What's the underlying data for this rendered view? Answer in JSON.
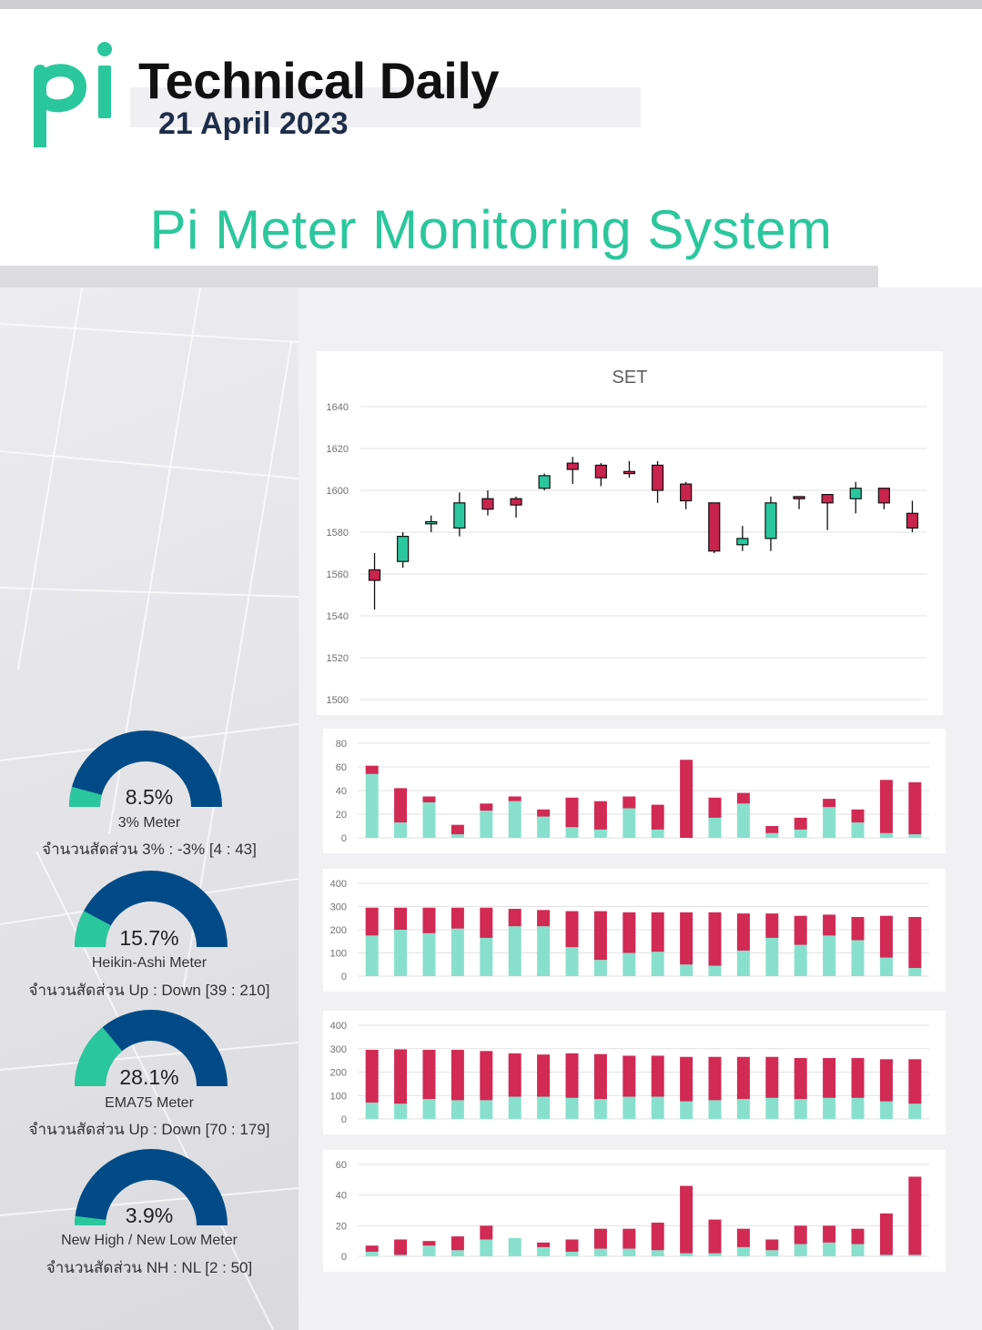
{
  "header": {
    "logo_text": "pi",
    "title": "Technical Daily",
    "date": "21 April 2023",
    "headline": "Pi Meter Monitoring System"
  },
  "colors": {
    "brand_green": "#2bc79c",
    "up_candle": "#2bc79c",
    "down_candle": "#c8244f",
    "bar_down": "#d02a55",
    "bar_up": "#88e0cc",
    "gauge_fill": "#004b87",
    "gauge_accent": "#2bc79c"
  },
  "gauges": [
    {
      "value": 8.5,
      "percent_label": "8.5%",
      "name": "3% Meter",
      "ratio": "จำนวนสัดส่วน 3% : -3% [4 : 43]"
    },
    {
      "value": 15.7,
      "percent_label": "15.7%",
      "name": "Heikin-Ashi Meter",
      "ratio": "จำนวนสัดส่วน Up : Down [39 : 210]"
    },
    {
      "value": 28.1,
      "percent_label": "28.1%",
      "name": "EMA75 Meter",
      "ratio": "จำนวนสัดส่วน Up : Down [70 : 179]"
    },
    {
      "value": 3.9,
      "percent_label": "3.9%",
      "name": "New High / New Low Meter",
      "ratio": "จำนวนสัดส่วน NH : NL [2 : 50]"
    }
  ],
  "chart_data": [
    {
      "type": "candlestick",
      "title": "SET",
      "ylim": [
        1500,
        1640
      ],
      "yticks": [
        1500,
        1520,
        1540,
        1560,
        1580,
        1600,
        1620,
        1640
      ],
      "grid": true,
      "candles": [
        {
          "o": 1562,
          "h": 1570,
          "l": 1543,
          "c": 1557
        },
        {
          "o": 1566,
          "h": 1580,
          "l": 1563,
          "c": 1578
        },
        {
          "o": 1584,
          "h": 1588,
          "l": 1580,
          "c": 1585
        },
        {
          "o": 1582,
          "h": 1599,
          "l": 1578,
          "c": 1594
        },
        {
          "o": 1596,
          "h": 1600,
          "l": 1588,
          "c": 1591
        },
        {
          "o": 1596,
          "h": 1597,
          "l": 1587,
          "c": 1593
        },
        {
          "o": 1601,
          "h": 1608,
          "l": 1600,
          "c": 1607
        },
        {
          "o": 1613,
          "h": 1616,
          "l": 1603,
          "c": 1610
        },
        {
          "o": 1612,
          "h": 1613,
          "l": 1602,
          "c": 1606
        },
        {
          "o": 1609,
          "h": 1614,
          "l": 1606,
          "c": 1608
        },
        {
          "o": 1612,
          "h": 1614,
          "l": 1594,
          "c": 1600
        },
        {
          "o": 1603,
          "h": 1604,
          "l": 1591,
          "c": 1595
        },
        {
          "o": 1594,
          "h": 1594,
          "l": 1570,
          "c": 1571
        },
        {
          "o": 1574,
          "h": 1583,
          "l": 1571,
          "c": 1577
        },
        {
          "o": 1577,
          "h": 1597,
          "l": 1571,
          "c": 1594
        },
        {
          "o": 1597,
          "h": 1597,
          "l": 1591,
          "c": 1596
        },
        {
          "o": 1598,
          "h": 1598,
          "l": 1581,
          "c": 1594
        },
        {
          "o": 1596,
          "h": 1604,
          "l": 1589,
          "c": 1601
        },
        {
          "o": 1601,
          "h": 1601,
          "l": 1591,
          "c": 1594
        },
        {
          "o": 1589,
          "h": 1595,
          "l": 1580,
          "c": 1582
        }
      ]
    },
    {
      "type": "bar",
      "stacked": true,
      "ylim": [
        0,
        80
      ],
      "yticks": [
        0,
        20,
        40,
        60,
        80
      ],
      "grid": true,
      "series": [
        {
          "color": "#88e0cc",
          "values": [
            54,
            13,
            30,
            3,
            23,
            31,
            18,
            9,
            7,
            25,
            7,
            0,
            17,
            29,
            4,
            7,
            26,
            13,
            4,
            3
          ]
        },
        {
          "color": "#d02a55",
          "values": [
            7,
            29,
            5,
            8,
            6,
            4,
            6,
            25,
            24,
            10,
            21,
            66,
            17,
            9,
            6,
            10,
            7,
            11,
            45,
            44
          ]
        }
      ]
    },
    {
      "type": "bar",
      "stacked": true,
      "ylim": [
        0,
        400
      ],
      "yticks": [
        0,
        100,
        200,
        300,
        400
      ],
      "grid": true,
      "series": [
        {
          "color": "#88e0cc",
          "values": [
            175,
            200,
            185,
            205,
            165,
            215,
            215,
            125,
            70,
            100,
            105,
            50,
            45,
            110,
            165,
            135,
            175,
            155,
            80,
            35
          ]
        },
        {
          "color": "#d02a55",
          "values": [
            120,
            95,
            110,
            90,
            130,
            75,
            70,
            155,
            210,
            175,
            170,
            225,
            230,
            160,
            105,
            125,
            90,
            100,
            180,
            220
          ]
        }
      ]
    },
    {
      "type": "bar",
      "stacked": true,
      "ylim": [
        0,
        400
      ],
      "yticks": [
        0,
        100,
        200,
        300,
        400
      ],
      "grid": true,
      "series": [
        {
          "color": "#88e0cc",
          "values": [
            70,
            65,
            85,
            80,
            80,
            95,
            95,
            90,
            85,
            95,
            95,
            75,
            80,
            85,
            90,
            85,
            90,
            90,
            75,
            65
          ]
        },
        {
          "color": "#d02a55",
          "values": [
            225,
            232,
            210,
            215,
            210,
            185,
            180,
            190,
            192,
            175,
            175,
            190,
            185,
            180,
            175,
            175,
            170,
            170,
            180,
            190
          ]
        }
      ]
    },
    {
      "type": "bar",
      "stacked": true,
      "ylim": [
        0,
        60
      ],
      "yticks": [
        0,
        20,
        40,
        60
      ],
      "grid": true,
      "series": [
        {
          "color": "#88e0cc",
          "values": [
            3,
            1,
            7,
            4,
            11,
            12,
            6,
            3,
            5,
            5,
            4,
            2,
            2,
            6,
            4,
            8,
            9,
            8,
            1,
            1
          ]
        },
        {
          "color": "#d02a55",
          "values": [
            4,
            10,
            3,
            9,
            9,
            0,
            3,
            8,
            13,
            13,
            18,
            44,
            22,
            12,
            7,
            12,
            11,
            10,
            27,
            51
          ]
        }
      ]
    }
  ]
}
